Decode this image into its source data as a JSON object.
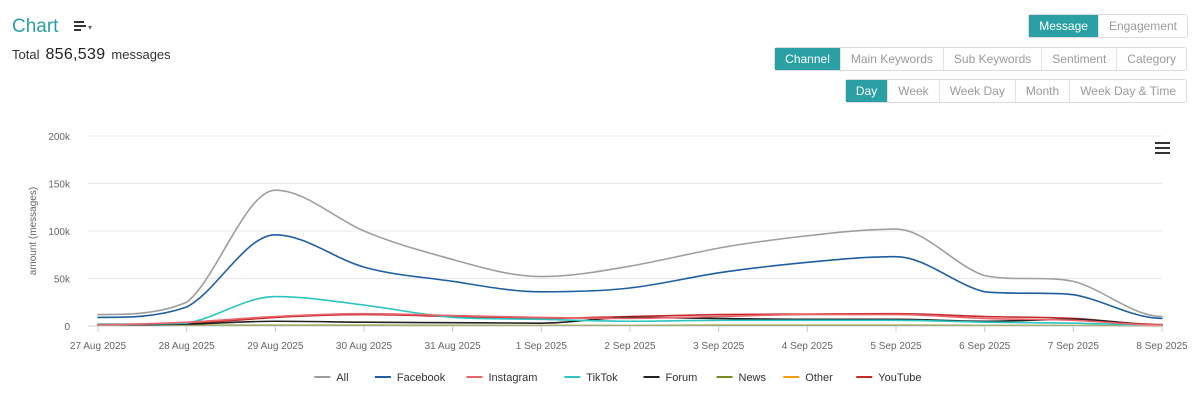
{
  "header": {
    "title": "Chart",
    "total_label": "Total",
    "total_value": "856,539",
    "total_unit": "messages"
  },
  "metric_toggle": [
    {
      "label": "Message",
      "active": true
    },
    {
      "label": "Engagement",
      "active": false
    }
  ],
  "group_toggle": [
    {
      "label": "Channel",
      "active": true
    },
    {
      "label": "Main Keywords",
      "active": false
    },
    {
      "label": "Sub Keywords",
      "active": false
    },
    {
      "label": "Sentiment",
      "active": false
    },
    {
      "label": "Category",
      "active": false
    }
  ],
  "period_toggle": [
    {
      "label": "Day",
      "active": true
    },
    {
      "label": "Week",
      "active": false
    },
    {
      "label": "Week Day",
      "active": false
    },
    {
      "label": "Month",
      "active": false
    },
    {
      "label": "Week Day & Time",
      "active": false
    }
  ],
  "colors": {
    "accent": "#2aa0a4"
  },
  "chart_data": {
    "type": "line",
    "title": "",
    "xlabel": "",
    "ylabel": "amount (messages)",
    "ylim": [
      0,
      200000
    ],
    "yticks": [
      0,
      50000,
      100000,
      150000,
      200000
    ],
    "ytick_labels": [
      "0",
      "50k",
      "100k",
      "150k",
      "200k"
    ],
    "categories": [
      "27 Aug 2025",
      "28 Aug 2025",
      "29 Aug 2025",
      "30 Aug 2025",
      "31 Aug 2025",
      "1 Sep 2025",
      "2 Sep 2025",
      "3 Sep 2025",
      "4 Sep 2025",
      "5 Sep 2025",
      "6 Sep 2025",
      "7 Sep 2025",
      "8 Sep 2025"
    ],
    "legend_position": "bottom-center",
    "series": [
      {
        "name": "All",
        "color": "#9e9e9e",
        "values": [
          12000,
          25000,
          143000,
          100000,
          70000,
          52000,
          63000,
          82000,
          95000,
          102000,
          53000,
          47000,
          10000
        ]
      },
      {
        "name": "Facebook",
        "color": "#1f5fa0",
        "values": [
          9000,
          20000,
          96000,
          62000,
          47000,
          36000,
          40000,
          56000,
          67000,
          73000,
          36000,
          33000,
          8000
        ]
      },
      {
        "name": "Instagram",
        "color": "#e8636b",
        "values": [
          1500,
          4000,
          10000,
          13000,
          11000,
          9000,
          8000,
          10000,
          12000,
          12000,
          8000,
          6000,
          1000
        ]
      },
      {
        "name": "TikTok",
        "color": "#2ec4c0",
        "values": [
          2000,
          3000,
          31000,
          22000,
          9000,
          7000,
          5000,
          6000,
          6000,
          6000,
          4000,
          3000,
          800
        ]
      },
      {
        "name": "Forum",
        "color": "#222222",
        "values": [
          1000,
          2000,
          5000,
          4000,
          3500,
          3000,
          9000,
          8000,
          7000,
          7000,
          5000,
          7000,
          700
        ]
      },
      {
        "name": "News",
        "color": "#7a8b1f",
        "values": [
          500,
          600,
          800,
          700,
          600,
          500,
          500,
          700,
          700,
          700,
          500,
          400,
          200
        ]
      },
      {
        "name": "Other",
        "color": "#f39c12",
        "values": [
          300,
          300,
          400,
          400,
          300,
          300,
          300,
          300,
          300,
          300,
          300,
          300,
          100
        ]
      },
      {
        "name": "YouTube",
        "color": "#c62828",
        "values": [
          1000,
          2500,
          9000,
          12000,
          10000,
          8000,
          10000,
          12000,
          12500,
          13000,
          10000,
          8000,
          1500
        ]
      }
    ]
  }
}
